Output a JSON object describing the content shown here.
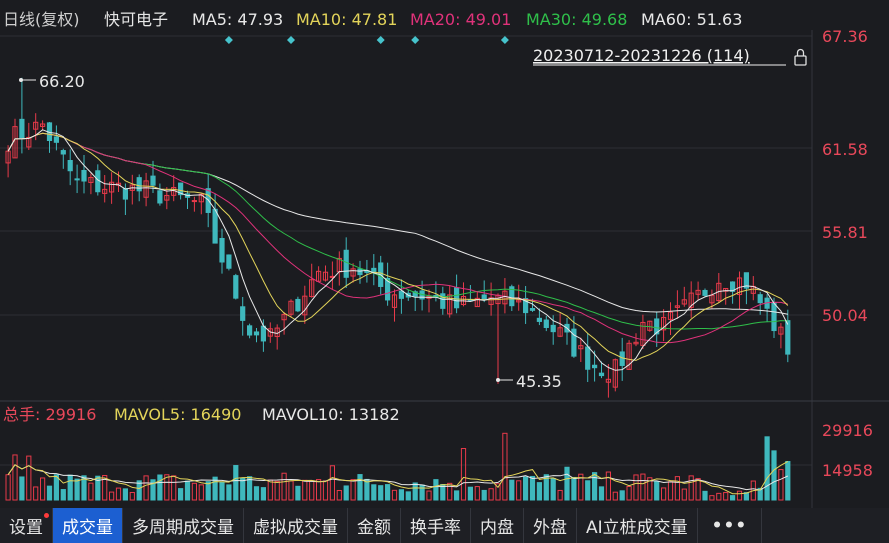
{
  "header": {
    "period_label": "日线(复权)",
    "stock_name": "快可电子",
    "ma": [
      {
        "label": "MA5: 47.93",
        "color": "#e8e8e8"
      },
      {
        "label": "MA10: 47.81",
        "color": "#e3d45a"
      },
      {
        "label": "MA20: 49.01",
        "color": "#e0327a"
      },
      {
        "label": "MA30: 49.68",
        "color": "#2fbf4a"
      },
      {
        "label": "MA60: 51.63",
        "color": "#e8e8e8"
      }
    ],
    "date_range": "20230712-20231226 (114)"
  },
  "volume_header": {
    "total_label": "总手: 29916",
    "mavol5_label": "MAVOL5: 16490",
    "mavol10_label": "MAVOL10: 13182"
  },
  "tabs": [
    {
      "label": "设置",
      "active": false,
      "dot": true
    },
    {
      "label": "成交量",
      "active": true,
      "dot": false
    },
    {
      "label": "多周期成交量",
      "active": false,
      "dot": false
    },
    {
      "label": "虚拟成交量",
      "active": false,
      "dot": false
    },
    {
      "label": "金额",
      "active": false,
      "dot": false
    },
    {
      "label": "换手率",
      "active": false,
      "dot": false
    },
    {
      "label": "内盘",
      "active": false,
      "dot": false
    },
    {
      "label": "外盘",
      "active": false,
      "dot": false
    },
    {
      "label": "AI立桩成交量",
      "active": false,
      "dot": false
    }
  ],
  "more_label": "•••",
  "chart_data": {
    "type": "candlestick",
    "title": "快可电子 日线(复权)",
    "date_range": "20230712-20231226",
    "bar_count": 114,
    "price_axis_ticks": [
      67.36,
      61.58,
      55.81,
      50.04
    ],
    "price_range": [
      44.0,
      68.3
    ],
    "volume_axis_ticks": [
      29916,
      14958
    ],
    "volume_range": [
      0,
      33000
    ],
    "annotations": {
      "high_label": "66.20",
      "high_value": 66.2,
      "low_label": "45.35",
      "low_value": 45.35
    },
    "colors": {
      "up": "#e83a4a",
      "down": "#3fb8bd",
      "ma5": "#e8e8e8",
      "ma10": "#e3d45a",
      "ma20": "#e0327a",
      "ma30": "#2fbf4a",
      "ma60": "#e8e8e8",
      "text_red": "#e8485a"
    },
    "latest": {
      "total_volume": 29916,
      "mavol5": 16490,
      "mavol10": 13182
    },
    "key_closes": [
      {
        "index": 0,
        "close": 62.0
      },
      {
        "index": 5,
        "close": 63.0
      },
      {
        "index": 10,
        "close": 59.0
      },
      {
        "index": 20,
        "close": 58.5
      },
      {
        "index": 28,
        "close": 57.6
      },
      {
        "index": 35,
        "close": 49.0
      },
      {
        "index": 38,
        "close": 48.4
      },
      {
        "index": 45,
        "close": 53.0
      },
      {
        "index": 50,
        "close": 53.4
      },
      {
        "index": 55,
        "close": 51.6
      },
      {
        "index": 60,
        "close": 51.4
      },
      {
        "index": 65,
        "close": 50.6
      },
      {
        "index": 70,
        "close": 51.2
      },
      {
        "index": 75,
        "close": 50.6
      },
      {
        "index": 80,
        "close": 48.7
      },
      {
        "index": 85,
        "close": 46.6
      },
      {
        "index": 88,
        "close": 46.2
      },
      {
        "index": 92,
        "close": 49.6
      },
      {
        "index": 95,
        "close": 49.2
      },
      {
        "index": 100,
        "close": 51.3
      },
      {
        "index": 103,
        "close": 52.6
      },
      {
        "index": 107,
        "close": 52.3
      },
      {
        "index": 110,
        "close": 50.2
      },
      {
        "index": 113,
        "close": 47.8
      }
    ]
  }
}
